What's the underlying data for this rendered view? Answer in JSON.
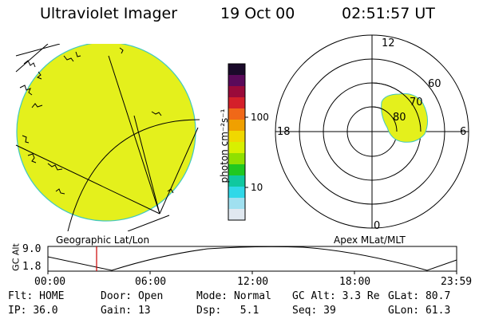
{
  "header": {
    "instrument": "Ultraviolet Imager",
    "date": "19 Oct 00",
    "time": "02:51:57 UT"
  },
  "colorbar": {
    "label": "photon cm⁻²s⁻¹",
    "ticks": [
      "100",
      "10"
    ],
    "colors": [
      "#1a0a2a",
      "#5a0a5a",
      "#9a0a3a",
      "#d4202a",
      "#f06818",
      "#f0a000",
      "#f0d800",
      "#d8f000",
      "#90e000",
      "#20c820",
      "#10c8a0",
      "#30d8e8",
      "#a0e0f0",
      "#e0e8f0"
    ]
  },
  "left_panel": {
    "caption": "Geographic Lat/Lon",
    "fill_color": "#e4f01c",
    "edge_color": "#40c8c0"
  },
  "right_panel": {
    "caption": "Apex MLat/MLT",
    "mlt_labels": {
      "top": "12",
      "left": "18",
      "right": "6",
      "bottom": "0"
    },
    "lat_labels": [
      "60",
      "70",
      "80"
    ]
  },
  "altitude_plot": {
    "ylabel": "GC Alt",
    "yticks": [
      "9.0",
      "1.8"
    ],
    "xticks": [
      "00:00",
      "06:00",
      "12:00",
      "18:00",
      "23:59"
    ],
    "marker_time": "02:51:57",
    "marker_color": "#cc0000"
  },
  "status": {
    "row1": [
      {
        "key": "Flt:",
        "val": "HOME"
      },
      {
        "key": "Door:",
        "val": "Open"
      },
      {
        "key": "Mode:",
        "val": "Normal"
      },
      {
        "key": "GC Alt:",
        "val": "3.3 Re"
      },
      {
        "key": "GLat:",
        "val": "80.7"
      }
    ],
    "row2": [
      {
        "key": "IP:",
        "val": "36.0"
      },
      {
        "key": "Gain:",
        "val": "13"
      },
      {
        "key": "Dsp:",
        "val": "5.1"
      },
      {
        "key": "Seq:",
        "val": "39"
      },
      {
        "key": "GLon:",
        "val": "61.3"
      }
    ]
  }
}
